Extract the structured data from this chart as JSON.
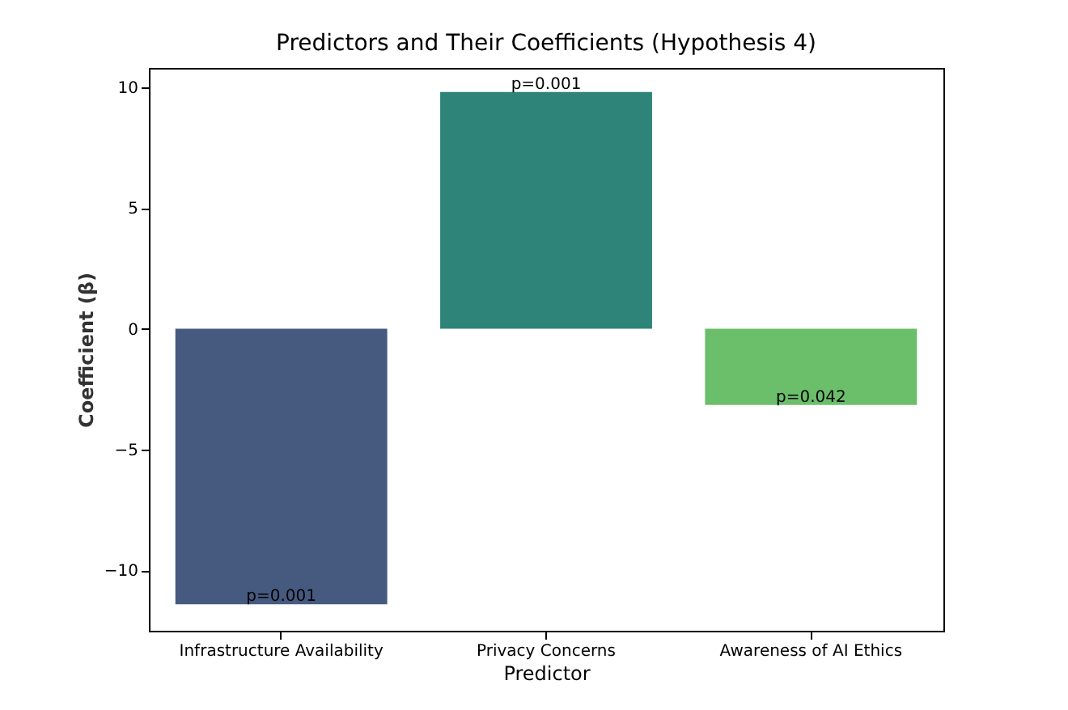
{
  "chart_data": {
    "type": "bar",
    "title": "Predictors and Their Coefficients (Hypothesis 4)",
    "xlabel": "Predictor",
    "ylabel": "Coefficient (β)",
    "categories": [
      "Infrastructure Availability",
      "Privacy Concerns",
      "Awareness of AI Ethics"
    ],
    "values": [
      -11.4,
      9.8,
      -3.15
    ],
    "colors": [
      "#465a80",
      "#2e8479",
      "#6bbf6b"
    ],
    "ylim": [
      -12.5,
      10.8
    ],
    "yticks": [
      -10,
      -5,
      0,
      5,
      10
    ],
    "grid": false,
    "annotations": [
      {
        "text": "p=0.001",
        "x": "Infrastructure Availability",
        "y": -11.4
      },
      {
        "text": "p=0.001",
        "x": "Privacy Concerns",
        "y": 9.8
      },
      {
        "text": "p=0.042",
        "x": "Awareness of AI Ethics",
        "y": -3.15
      }
    ]
  }
}
